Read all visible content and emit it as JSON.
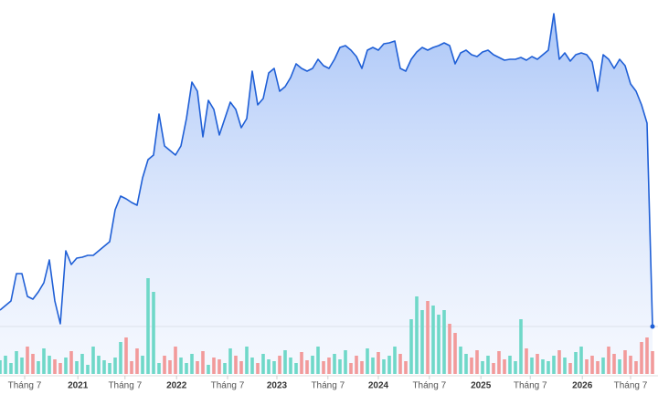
{
  "chart_data": {
    "type": "line",
    "x": [
      0,
      1,
      2,
      3,
      4,
      5,
      6,
      7,
      8,
      9,
      10,
      11,
      12,
      13,
      14,
      15,
      16,
      17,
      18,
      19,
      20,
      21,
      22,
      23,
      24,
      25,
      26,
      27,
      28,
      29,
      30,
      31,
      32,
      33,
      34,
      35,
      36,
      37,
      38,
      39,
      40,
      41,
      42,
      43,
      44,
      45,
      46,
      47,
      48,
      49,
      50,
      51,
      52,
      53,
      54,
      55,
      56,
      57,
      58,
      59,
      60,
      61,
      62,
      63,
      64,
      65,
      66,
      67,
      68,
      69,
      70,
      71,
      72,
      73,
      74,
      75,
      76,
      77,
      78,
      79,
      80,
      81,
      82,
      83,
      84,
      85,
      86,
      87,
      88,
      89,
      90,
      91,
      92,
      93,
      94,
      95,
      96,
      97,
      98,
      99,
      100,
      101,
      102,
      103,
      104,
      105,
      106,
      107,
      108,
      109,
      110,
      111,
      112,
      113,
      114,
      115,
      116,
      117,
      118,
      119
    ],
    "series": [
      {
        "color": "#1f5fd6",
        "values": [
          20,
          25,
          30,
          60,
          60,
          35,
          32,
          40,
          50,
          75,
          30,
          5,
          85,
          70,
          77,
          78,
          80,
          80,
          85,
          90,
          95,
          130,
          145,
          142,
          138,
          135,
          165,
          185,
          190,
          235,
          200,
          195,
          190,
          200,
          230,
          270,
          260,
          210,
          250,
          240,
          212,
          230,
          248,
          240,
          220,
          230,
          282,
          245,
          252,
          280,
          285,
          260,
          265,
          275,
          290,
          285,
          282,
          285,
          295,
          288,
          285,
          295,
          308,
          310,
          305,
          298,
          285,
          305,
          308,
          305,
          312,
          313,
          315,
          285,
          282,
          295,
          303,
          308,
          305,
          308,
          310,
          313,
          310,
          290,
          302,
          305,
          300,
          298,
          303,
          305,
          300,
          297,
          294,
          295,
          295,
          297,
          294,
          298,
          295,
          300,
          305,
          345,
          295,
          302,
          293,
          300,
          302,
          300,
          292,
          260,
          300,
          295,
          285,
          295,
          288,
          268,
          260,
          245,
          225,
          2
        ]
      }
    ],
    "volume": {
      "up_color": "#6fd8c8",
      "down_color": "#f29a9a",
      "values": [
        15,
        20,
        12,
        25,
        18,
        30,
        22,
        14,
        28,
        20,
        16,
        12,
        18,
        25,
        14,
        22,
        10,
        30,
        20,
        15,
        12,
        18,
        35,
        40,
        14,
        28,
        20,
        105,
        90,
        12,
        20,
        15,
        30,
        18,
        12,
        22,
        14,
        25,
        10,
        18,
        16,
        12,
        28,
        20,
        14,
        30,
        18,
        12,
        22,
        16,
        14,
        20,
        26,
        18,
        12,
        24,
        15,
        20,
        30,
        14,
        18,
        22,
        16,
        26,
        12,
        20,
        14,
        28,
        18,
        24,
        16,
        20,
        30,
        22,
        14,
        60,
        85,
        70,
        80,
        75,
        65,
        70,
        55,
        45,
        30,
        22,
        18,
        26,
        14,
        20,
        12,
        25,
        16,
        20,
        14,
        60,
        28,
        18,
        22,
        16,
        14,
        20,
        26,
        18,
        12,
        24,
        30,
        16,
        20,
        14,
        18,
        30,
        22,
        16,
        26,
        20,
        14,
        35,
        40,
        25
      ],
      "ylim": [
        0,
        120
      ]
    },
    "xlim": [
      0,
      120
    ],
    "ylim": [
      0,
      360
    ],
    "xticks": [
      {
        "value": 4.5,
        "label": "Tháng 7"
      },
      {
        "value": 14.2,
        "label": "2021"
      },
      {
        "value": 22.8,
        "label": "Tháng 7"
      },
      {
        "value": 32.2,
        "label": "2022"
      },
      {
        "value": 41.5,
        "label": "Tháng 7"
      },
      {
        "value": 50.5,
        "label": "2023"
      },
      {
        "value": 59.8,
        "label": "Tháng 7"
      },
      {
        "value": 69,
        "label": "2024"
      },
      {
        "value": 78.3,
        "label": "Tháng 7"
      },
      {
        "value": 87.7,
        "label": "2025"
      },
      {
        "value": 96.7,
        "label": "Tháng 7"
      },
      {
        "value": 106.2,
        "label": "2026"
      },
      {
        "value": 115,
        "label": "Tháng 7"
      }
    ]
  }
}
